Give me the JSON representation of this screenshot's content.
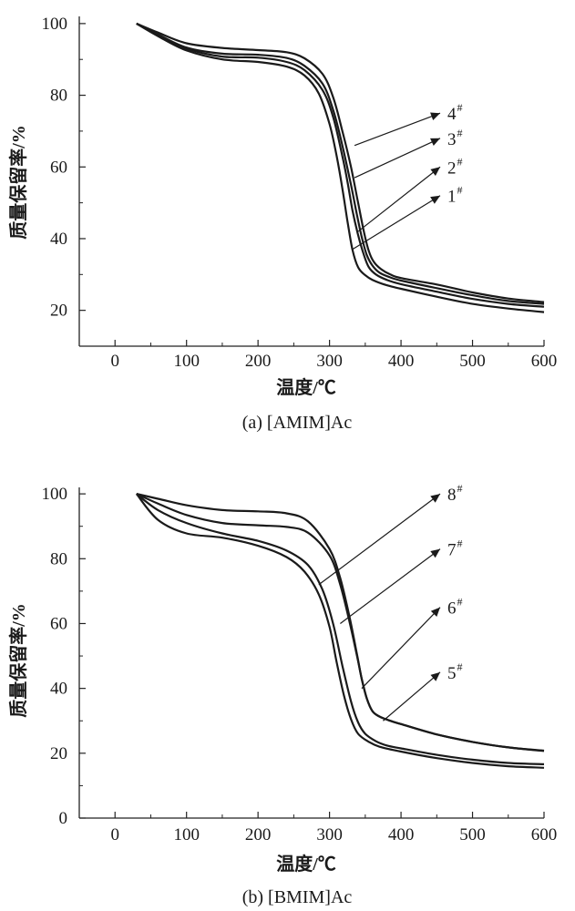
{
  "chart_data": [
    {
      "type": "line",
      "caption": "(a) [AMIM]Ac",
      "xlabel": "温度/℃",
      "ylabel": "质量保留率/%",
      "xlim": [
        -50,
        600
      ],
      "ylim": [
        10,
        102
      ],
      "xticks": [
        0,
        100,
        200,
        300,
        400,
        500,
        600
      ],
      "yticks": [
        20,
        40,
        60,
        80,
        100
      ],
      "series": [
        {
          "name": "1",
          "sup": "#",
          "x": [
            30,
            60,
            100,
            150,
            200,
            240,
            265,
            285,
            300,
            310,
            318,
            325,
            332,
            340,
            350,
            360,
            380,
            400,
            450,
            500,
            550,
            600
          ],
          "y": [
            100,
            96.5,
            92.5,
            90,
            89.3,
            88,
            85.5,
            80.5,
            72,
            63,
            54,
            45,
            37,
            32,
            29.8,
            28.5,
            27,
            26,
            23.8,
            21.8,
            20.5,
            19.5
          ],
          "anchor": [
            332,
            37
          ],
          "label_pos": [
            470,
            52
          ]
        },
        {
          "name": "2",
          "sup": "#",
          "x": [
            30,
            60,
            100,
            150,
            200,
            240,
            265,
            290,
            305,
            318,
            325,
            332,
            340,
            348,
            355,
            365,
            380,
            400,
            450,
            500,
            550,
            600
          ],
          "y": [
            100,
            96.8,
            93,
            90.8,
            90.5,
            89.3,
            87,
            81.5,
            74,
            63,
            56,
            48,
            41,
            35.5,
            32,
            30,
            28.5,
            27.3,
            25.2,
            23.2,
            21.8,
            21
          ],
          "anchor": [
            340,
            42
          ],
          "label_pos": [
            470,
            60
          ]
        },
        {
          "name": "3",
          "sup": "#",
          "x": [
            30,
            60,
            100,
            150,
            200,
            240,
            265,
            290,
            305,
            318,
            330,
            338,
            345,
            352,
            360,
            370,
            385,
            400,
            450,
            500,
            550,
            600
          ],
          "y": [
            100,
            97,
            93.3,
            91.6,
            91.3,
            90.4,
            88.2,
            83.3,
            76,
            66,
            55,
            47,
            40.5,
            35.5,
            32.5,
            30.5,
            29.2,
            28.3,
            26.2,
            24.2,
            22.6,
            21.8
          ],
          "anchor": [
            335,
            57
          ],
          "label_pos": [
            470,
            68
          ]
        },
        {
          "name": "4",
          "sup": "#",
          "x": [
            30,
            60,
            100,
            150,
            200,
            240,
            265,
            290,
            305,
            318,
            330,
            340,
            348,
            355,
            362,
            372,
            385,
            400,
            450,
            500,
            550,
            600
          ],
          "y": [
            100,
            97.5,
            94.5,
            93.2,
            92.6,
            92,
            90.3,
            86,
            79.5,
            70,
            60,
            50,
            42,
            36.5,
            33.5,
            31.5,
            30,
            29,
            27.2,
            25,
            23.3,
            22.3
          ],
          "anchor": [
            335,
            66
          ],
          "label_pos": [
            470,
            75
          ]
        }
      ]
    },
    {
      "type": "line",
      "caption": "(b) [BMIM]Ac",
      "xlabel": "温度/℃",
      "ylabel": "质量保留率/%",
      "xlim": [
        -50,
        600
      ],
      "ylim": [
        0,
        102
      ],
      "xticks": [
        0,
        100,
        200,
        300,
        400,
        500,
        600
      ],
      "yticks": [
        0,
        20,
        40,
        60,
        80,
        100
      ],
      "series": [
        {
          "name": "5",
          "sup": "#",
          "x": [
            30,
            60,
            100,
            150,
            200,
            240,
            270,
            300,
            315,
            328,
            338,
            345,
            352,
            360,
            370,
            385,
            400,
            450,
            500,
            550,
            600
          ],
          "y": [
            100,
            98.5,
            96.5,
            95,
            94.6,
            94,
            91.5,
            83,
            74,
            62,
            51,
            43,
            37,
            33,
            31.3,
            30,
            29,
            25.8,
            23.5,
            21.8,
            20.8
          ],
          "anchor": [
            375,
            30
          ],
          "label_pos": [
            470,
            45
          ]
        },
        {
          "name": "6",
          "sup": "#",
          "x": [
            30,
            60,
            100,
            150,
            200,
            240,
            270,
            300,
            315,
            328,
            338,
            345,
            352,
            360,
            370,
            385,
            400,
            450,
            500,
            550,
            600
          ],
          "y": [
            100,
            97,
            93.5,
            91,
            90.3,
            89.8,
            88,
            81,
            72,
            60.5,
            50.5,
            43,
            37,
            33,
            31.3,
            30,
            29,
            25.8,
            23.5,
            21.8,
            20.7
          ],
          "anchor": [
            345,
            40
          ],
          "label_pos": [
            470,
            65
          ]
        },
        {
          "name": "7",
          "sup": "#",
          "x": [
            30,
            60,
            100,
            150,
            200,
            240,
            270,
            290,
            305,
            318,
            330,
            340,
            350,
            365,
            380,
            400,
            450,
            500,
            550,
            600
          ],
          "y": [
            100,
            95,
            91,
            87.8,
            85.5,
            82.5,
            78,
            70.5,
            60,
            47,
            36,
            29.5,
            26,
            23.7,
            22.4,
            21.5,
            19.5,
            18,
            17,
            16.6
          ],
          "anchor": [
            315,
            60
          ],
          "label_pos": [
            470,
            83
          ]
        },
        {
          "name": "8",
          "sup": "#",
          "x": [
            30,
            60,
            100,
            150,
            200,
            240,
            265,
            285,
            300,
            310,
            320,
            330,
            340,
            355,
            370,
            400,
            450,
            500,
            550,
            600
          ],
          "y": [
            100,
            92,
            87.8,
            86.5,
            84,
            80.5,
            76,
            69,
            59,
            48,
            38,
            30.5,
            26,
            23.5,
            22,
            20.5,
            18.5,
            17,
            16,
            15.5
          ],
          "anchor": [
            285,
            72
          ],
          "label_pos": [
            470,
            100
          ]
        }
      ]
    }
  ]
}
